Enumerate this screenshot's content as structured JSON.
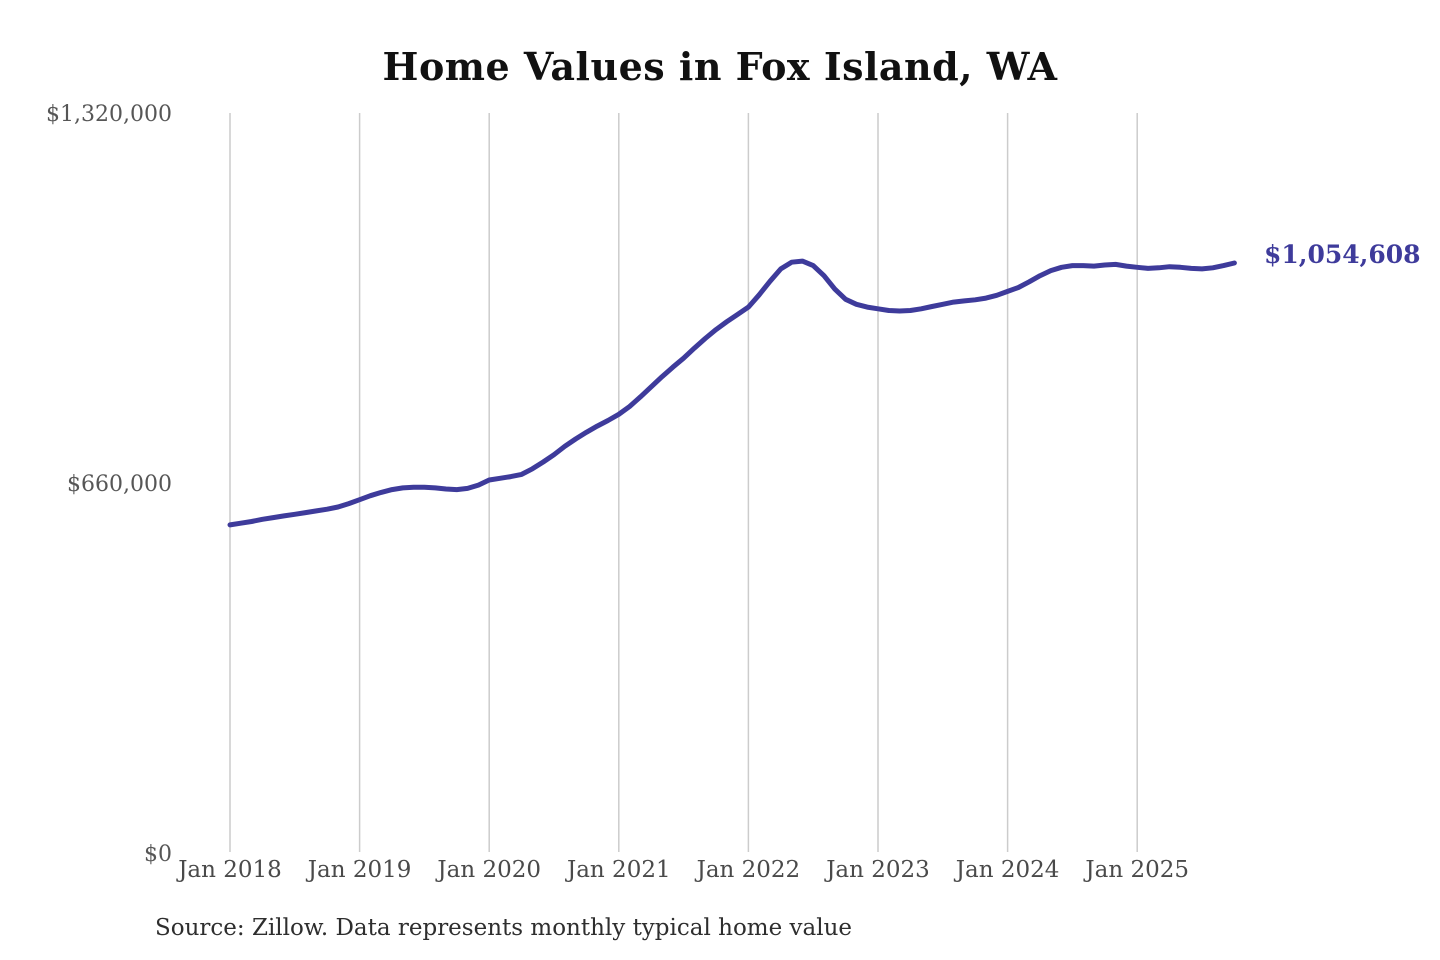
{
  "title": "Home Values in Fox Island, WA",
  "source_note": "Source: Zillow. Data represents monthly typical home value",
  "end_label": "$1,054,608",
  "y_axis": {
    "labels": [
      "$1,320,000",
      "$660,000",
      "$0"
    ]
  },
  "x_axis": {
    "labels": [
      "Jan 2018",
      "Jan 2019",
      "Jan 2020",
      "Jan 2021",
      "Jan 2022",
      "Jan 2023",
      "Jan 2024",
      "Jan 2025"
    ]
  },
  "chart_data": {
    "type": "line",
    "title": "Home Values in Fox Island, WA",
    "series_name": "Monthly typical home value (USD)",
    "x_start": "2018-01",
    "frequency": "monthly",
    "ylim": [
      0,
      1320000
    ],
    "grid": "vertical-only",
    "legend": "none",
    "line_color": "#3e3b9b",
    "grid_color": "#cccccc",
    "last_value": 1054608,
    "last_value_label": "$1,054,608",
    "y_ticks": [
      {
        "value": 1320000,
        "label": "$1,320,000"
      },
      {
        "value": 660000,
        "label": "$660,000"
      },
      {
        "value": 0,
        "label": "$0"
      }
    ],
    "x_ticks": [
      {
        "month_index": 0,
        "label": "Jan 2018"
      },
      {
        "month_index": 12,
        "label": "Jan 2019"
      },
      {
        "month_index": 24,
        "label": "Jan 2020"
      },
      {
        "month_index": 36,
        "label": "Jan 2021"
      },
      {
        "month_index": 48,
        "label": "Jan 2022"
      },
      {
        "month_index": 60,
        "label": "Jan 2023"
      },
      {
        "month_index": 72,
        "label": "Jan 2024"
      },
      {
        "month_index": 84,
        "label": "Jan 2025"
      }
    ],
    "values": [
      588000,
      591000,
      594000,
      598000,
      601000,
      604000,
      607000,
      610000,
      613000,
      616000,
      620000,
      626000,
      633000,
      640000,
      646000,
      651000,
      654000,
      655000,
      655000,
      654000,
      652000,
      651000,
      653000,
      659000,
      668000,
      671000,
      674000,
      678000,
      688000,
      700000,
      713000,
      728000,
      741000,
      753000,
      764000,
      774000,
      785000,
      799000,
      816000,
      834000,
      852000,
      869000,
      885000,
      903000,
      920000,
      936000,
      950000,
      963000,
      976000,
      998000,
      1022000,
      1044000,
      1056000,
      1058000,
      1050000,
      1032000,
      1008000,
      990000,
      981000,
      976000,
      973000,
      970000,
      969000,
      970000,
      973000,
      977000,
      981000,
      985000,
      987000,
      989000,
      992000,
      997000,
      1004000,
      1011000,
      1021000,
      1032000,
      1041000,
      1047000,
      1050000,
      1050000,
      1049000,
      1051000,
      1052000,
      1049000,
      1047000,
      1045000,
      1046000,
      1048000,
      1047000,
      1045000,
      1044000,
      1046000,
      1050000,
      1054608
    ]
  }
}
